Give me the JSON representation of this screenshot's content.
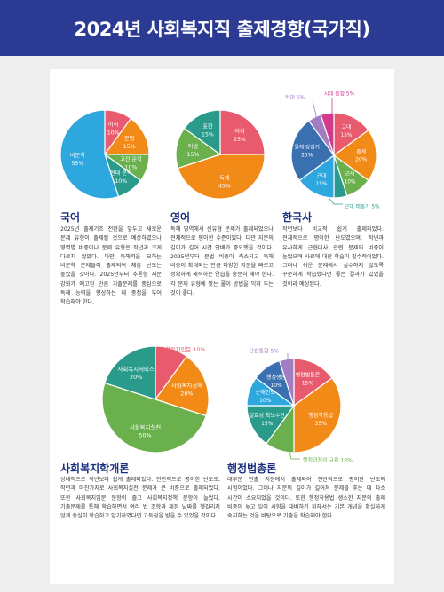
{
  "page_title": "2024년 사회복지직 출제경향(국가직)",
  "chart_data": [
    {
      "type": "pie",
      "subject": "국어",
      "slices": [
        {
          "label": "어휘",
          "value": 10,
          "color": "#e85a6e"
        },
        {
          "label": "문법",
          "value": 15,
          "color": "#f28a18"
        },
        {
          "label": "고전 문학",
          "value": 10,
          "color": "#6ab04c"
        },
        {
          "label": "현대 문학",
          "value": 10,
          "color": "#2a9a8a"
        },
        {
          "label": "비문학",
          "value": 55,
          "color": "#2ea6de"
        }
      ]
    },
    {
      "type": "pie",
      "subject": "영어",
      "slices": [
        {
          "label": "어휘",
          "value": 25,
          "color": "#e85a6e"
        },
        {
          "label": "독해",
          "value": 45,
          "color": "#f28a18"
        },
        {
          "label": "어법",
          "value": 15,
          "color": "#6ab04c"
        },
        {
          "label": "표현",
          "value": 15,
          "color": "#2a9a8a"
        }
      ]
    },
    {
      "type": "pie",
      "subject": "한국사",
      "slices": [
        {
          "label": "고대",
          "value": 15,
          "color": "#e85a6e"
        },
        {
          "label": "중세",
          "value": 20,
          "color": "#f28a18"
        },
        {
          "label": "근세",
          "value": 10,
          "color": "#6ab04c"
        },
        {
          "label": "근대 태동기",
          "value": 5,
          "color": "#2a9a8a"
        },
        {
          "label": "근대",
          "value": 15,
          "color": "#2ea6de"
        },
        {
          "label": "일제 강점기",
          "value": 25,
          "color": "#3a6fb0"
        },
        {
          "label": "현대",
          "value": 5,
          "color": "#a17dc2"
        },
        {
          "label": "시대 통합",
          "value": 5,
          "color": "#d43a8c"
        }
      ]
    },
    {
      "type": "pie",
      "subject": "사회복지학개론",
      "slices": [
        {
          "label": "사회복지입문",
          "value": 10,
          "color": "#e85a6e"
        },
        {
          "label": "사회복지정책",
          "value": 20,
          "color": "#f28a18"
        },
        {
          "label": "사회복지실천",
          "value": 50,
          "color": "#6ab04c"
        },
        {
          "label": "사회복지서비스",
          "value": 20,
          "color": "#2a9a8a"
        }
      ]
    },
    {
      "type": "pie",
      "subject": "행정법총론",
      "slices": [
        {
          "label": "행정법통론",
          "value": 15,
          "color": "#e85a6e"
        },
        {
          "label": "행정작용법",
          "value": 35,
          "color": "#f28a18"
        },
        {
          "label": "행정과정의 규율",
          "value": 10,
          "color": "#6ab04c"
        },
        {
          "label": "실효성 확보수단",
          "value": 15,
          "color": "#2a9a8a"
        },
        {
          "label": "손해전보",
          "value": 10,
          "color": "#2ea6de"
        },
        {
          "label": "행정쟁송",
          "value": 10,
          "color": "#3a6fb0"
        },
        {
          "label": "단원통합",
          "value": 5,
          "color": "#a17dc2"
        }
      ]
    }
  ],
  "sections": [
    {
      "title": "국어",
      "body": "2025년 출제기조 전환을 앞두고 새로운 문제 유형이 출제될 것으로 예상하였으나 영역별 비중이나 문제 유형은 작년과 크게 다르지 않았다. 다만 독해력을 요하는 비문학 문제들이 출제되어 체감 난도는 높았을 것이다. 2025년부터 추론형 지문 강화가 예고된 만큼 기출문제를 중심으로 독해 능력을 향상하는 데 중점을 두어 학습해야 한다."
    },
    {
      "title": "영어",
      "body": "독해 영역에서 신유형 문제가 출제되었으나 전체적으로 평이한 수준이었다. 다만 지문의 길이가 길어 시간 안배가 중요했을 것이다. 2025년부터 문법 비중이 축소되고 독해 비중이 확대되는 만큼 다양한 지문을 빠르고 정확하게 해석하는 연습을 충분히 해야 한다. 각 문제 유형에 맞는 풀이 방법을 익혀 두는 것이 좋다."
    },
    {
      "title": "한국사",
      "body": "작년보다 비교적 쉽게 출제되었다. 전체적으로 평이한 난도였으며, 작년과 유사하게 근현대사 관련 문제의 비중이 높았으며 사료에 대한 학습이 필수적이었다. 그러나 쉬운 문제에서 실수하지 않도록 꾸준하게 학습했다면 좋은 결과가 있었을 것이라 예상된다."
    },
    {
      "title": "사회복지학개론",
      "body": "상대적으로 작년보다 쉽게 출제되었다. 전반적으로 평이한 난도로, 작년과 마찬가지로 사회복지실천 문제가 큰 비중으로 출제되었다. 또한 사회복지입문 문항이 줄고 사회복지정책 문항이 늘었다. 기출문제를 통해 학습하면서 여러 법 조항과 제정 날짜를 헷갈리지 않게 충실히 학습하고 암기하였다면 고득점을 받을 수 있었을 것이다."
    },
    {
      "title": "행정법총론",
      "body": "대부분 빈출 지문에서 출제되어 전반적으로 평이한 난도의 시험이었다. 그러나 지문의 길이가 길어져 문제를 푸는 데 다소 시간이 소요되었을 것이다. 또한 행정작용법 생소한 지문의 출제 비중이 높고 일어 시험을 대비하기 위해서는 기본 개념을 확실하게 숙지하는 것을 바탕으로 기출을 학습해야 한다."
    }
  ]
}
